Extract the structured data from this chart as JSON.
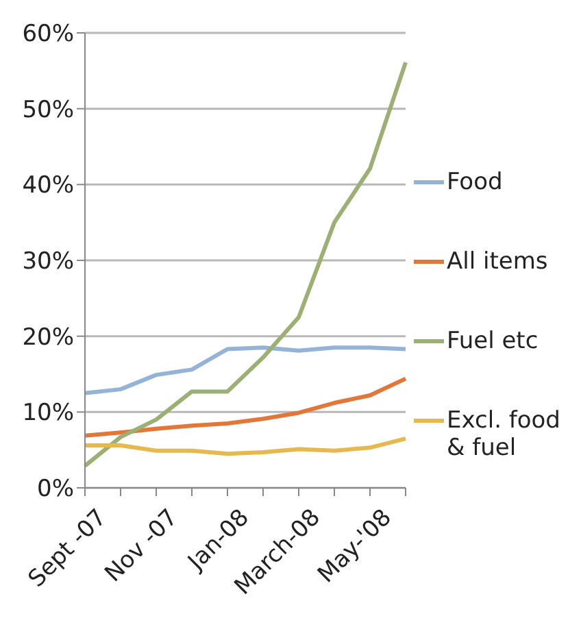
{
  "chart_data": {
    "type": "line",
    "categories": [
      "Sept -07",
      null,
      "Nov -07",
      null,
      "Jan-08",
      null,
      "March-08",
      null,
      "May-'08",
      null
    ],
    "series": [
      {
        "name": "Food",
        "color": "#95b3d7",
        "values": [
          12.5,
          13.0,
          14.9,
          15.6,
          18.3,
          18.5,
          18.1,
          18.5,
          18.5,
          18.3
        ]
      },
      {
        "name": "All items",
        "color": "#e3773a",
        "values": [
          6.9,
          7.3,
          7.8,
          8.2,
          8.5,
          9.1,
          9.9,
          11.2,
          12.2,
          14.4
        ]
      },
      {
        "name": "Fuel etc",
        "color": "#9caf74",
        "values": [
          2.9,
          6.7,
          9.0,
          12.7,
          12.7,
          17.2,
          22.5,
          35.0,
          42.1,
          56.1
        ]
      },
      {
        "name": "Excl. food & fuel",
        "color": "#e6b94f",
        "values": [
          5.6,
          5.6,
          4.9,
          4.9,
          4.5,
          4.7,
          5.1,
          4.9,
          5.3,
          6.5
        ]
      }
    ],
    "ylim": [
      0,
      60
    ],
    "yticks": [
      {
        "value": 0,
        "label": "0%"
      },
      {
        "value": 10,
        "label": "10%"
      },
      {
        "value": 20,
        "label": "20%"
      },
      {
        "value": 30,
        "label": "30%"
      },
      {
        "value": 40,
        "label": "40%"
      },
      {
        "value": 50,
        "label": "50%"
      },
      {
        "value": 60,
        "label": "60%"
      }
    ],
    "grid": "y",
    "legend": "right",
    "marker": "none",
    "line_style": "solid"
  }
}
